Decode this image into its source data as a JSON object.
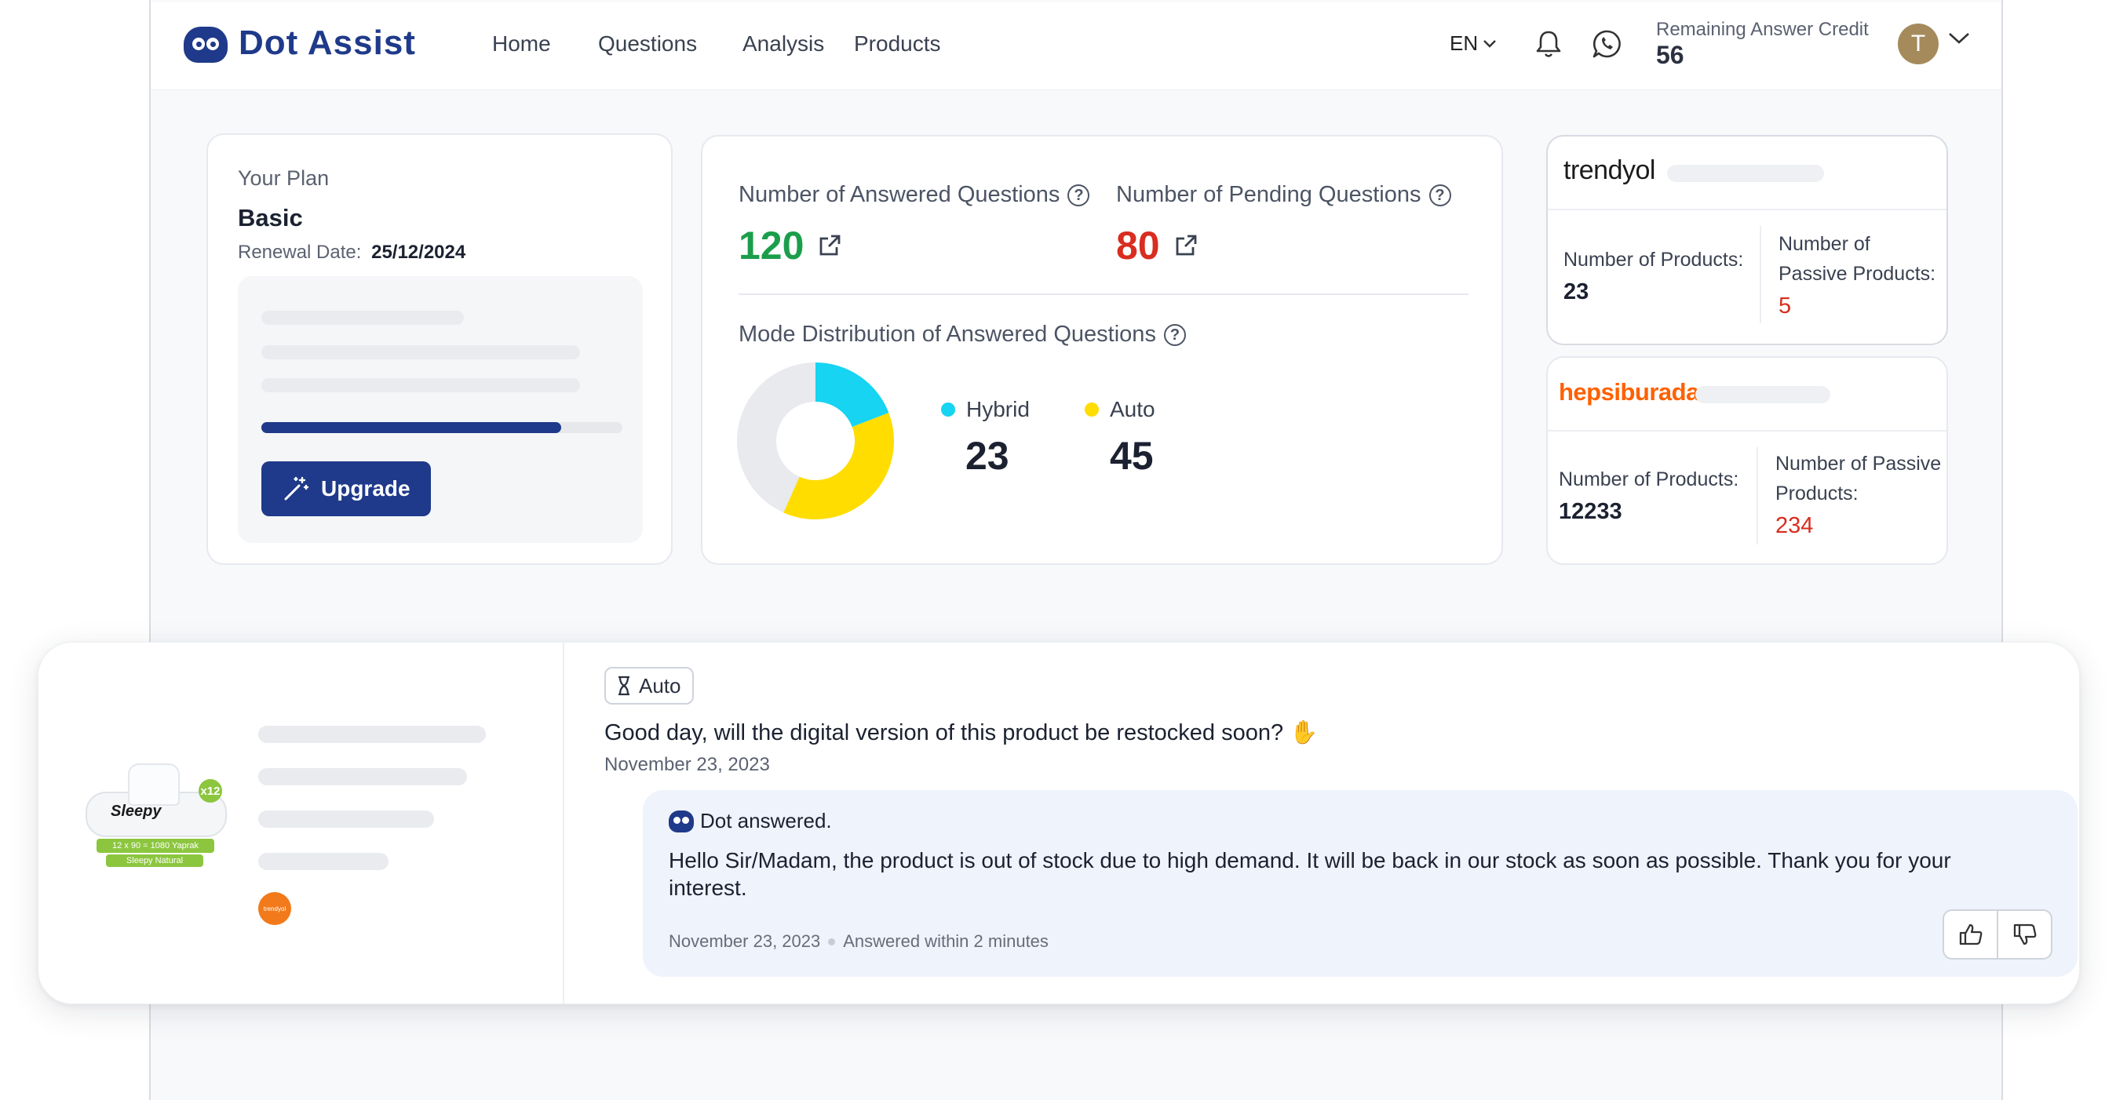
{
  "brand": {
    "name": "Dot Assist",
    "primary_color": "#1f3a8a"
  },
  "nav": {
    "home": "Home",
    "questions": "Questions",
    "analysis": "Analysis",
    "products": "Products"
  },
  "header": {
    "language": "EN",
    "credit_label": "Remaining Answer Credit",
    "credit_value": "56",
    "avatar_initial": "T"
  },
  "plan": {
    "heading": "Your Plan",
    "name": "Basic",
    "renewal_label": "Renewal Date:",
    "renewal_date": "25/12/2024",
    "usage_fraction": 0.83,
    "upgrade_label": "Upgrade"
  },
  "stats": {
    "answered_label": "Number of Answered Questions",
    "answered_value": "120",
    "answered_color": "#1b9e4b",
    "pending_label": "Number of Pending Questions",
    "pending_value": "80",
    "pending_color": "#d92d20",
    "distribution_label": "Mode Distribution of Answered Questions",
    "hybrid_label": "Hybrid",
    "hybrid_value": "23",
    "hybrid_color": "#16d4f2",
    "auto_label": "Auto",
    "auto_value": "45",
    "auto_color": "#ffdd00",
    "remainder_color": "#e8eaee"
  },
  "marketplaces": [
    {
      "name": "trendyol",
      "products_label": "Number of Products:",
      "products_value": "23",
      "passive_label": "Number of Passive Products:",
      "passive_value": "5"
    },
    {
      "name": "hepsiburada",
      "name_color": "#ff6000",
      "products_label": "Number of Products:",
      "products_value": "12233",
      "passive_label": "Number of Passive Products:",
      "passive_value": "234"
    }
  ],
  "question": {
    "mode_badge": "Auto",
    "text": "Good day, will the digital version of this product be restocked soon?",
    "emoji": "✋",
    "date": "November 23, 2023",
    "product": {
      "brand": "Sleepy",
      "pack_count": "x12",
      "pack_info": "12 x 90 = 1080 Yaprak",
      "variant": "Sleepy Natural",
      "store_badge": "trendyol"
    },
    "answer": {
      "author_label": "Dot answered.",
      "text": "Hello Sir/Madam, the product is out of stock due to high demand. It will be back in our stock as soon as possible. Thank you for your interest.",
      "date": "November 23, 2023",
      "response_time": "Answered within 2 minutes"
    }
  },
  "icons": [
    "bell-icon",
    "whatsapp-icon",
    "chevron-down-icon",
    "magic-wand-icon",
    "external-link-icon",
    "help-circle-icon",
    "hourglass-icon",
    "thumbs-up-icon",
    "thumbs-down-icon"
  ]
}
